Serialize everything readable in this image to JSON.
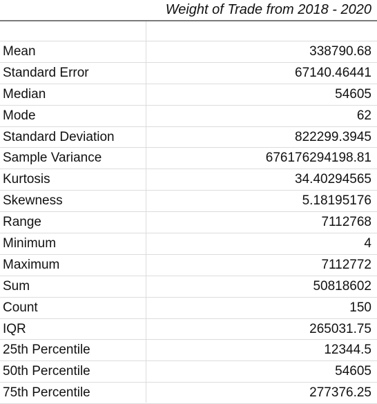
{
  "header": {
    "title": "Weight of Trade from 2018 - 2020"
  },
  "stats": [
    {
      "label": "Mean",
      "value": "338790.68"
    },
    {
      "label": "Standard Error",
      "value": "67140.46441"
    },
    {
      "label": "Median",
      "value": "54605"
    },
    {
      "label": "Mode",
      "value": "62"
    },
    {
      "label": "Standard Deviation",
      "value": "822299.3945"
    },
    {
      "label": "Sample Variance",
      "value": "676176294198.81"
    },
    {
      "label": "Kurtosis",
      "value": "34.40294565"
    },
    {
      "label": "Skewness",
      "value": "5.18195176"
    },
    {
      "label": "Range",
      "value": "7112768"
    },
    {
      "label": "Minimum",
      "value": "4"
    },
    {
      "label": "Maximum",
      "value": "7112772"
    },
    {
      "label": "Sum",
      "value": "50818602"
    },
    {
      "label": "Count",
      "value": "150"
    },
    {
      "label": "IQR",
      "value": "265031.75"
    },
    {
      "label": "25th Percentile",
      "value": "12344.5"
    },
    {
      "label": "50th Percentile",
      "value": "54605"
    },
    {
      "label": "75th Percentile",
      "value": "277376.25"
    }
  ]
}
